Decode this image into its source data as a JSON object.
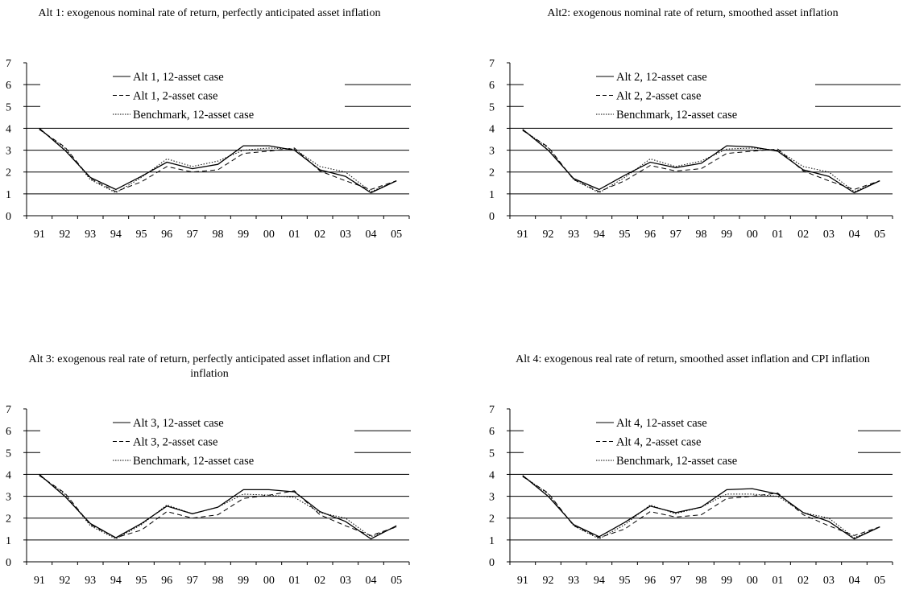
{
  "charts": [
    {
      "title": "Alt 1: exogenous nominal rate of return, perfectly anticipated asset inflation",
      "grid_x": [
        428,
        510
      ]
    },
    {
      "title": "Alt2: exogenous nominal rate of return, smoothed asset inflation",
      "grid_x": [
        412,
        518
      ]
    },
    {
      "title": "Alt 3: exogenous real rate of return, perfectly anticipated asset inflation and CPI inflation",
      "grid_x": [
        440,
        510
      ]
    },
    {
      "title": "Alt 4: exogenous real rate of return, smoothed asset inflation and CPI inflation",
      "grid_x": [
        465,
        518
      ]
    }
  ],
  "chart_data": [
    {
      "type": "line",
      "title": "Alt 1: exogenous nominal rate of return, perfectly anticipated asset inflation",
      "categories": [
        "91",
        "92",
        "93",
        "94",
        "95",
        "96",
        "97",
        "98",
        "99",
        "00",
        "01",
        "02",
        "03",
        "04",
        "05"
      ],
      "ylim": [
        0,
        7
      ],
      "yticks": [
        "0",
        "1",
        "2",
        "3",
        "4",
        "5",
        "6",
        "7"
      ],
      "grid": "horizontal at 4 and above, partial",
      "legend": "top-center",
      "series": [
        {
          "name": "Alt 1, 12-asset case",
          "style": "solid",
          "values": [
            4.0,
            3.0,
            1.75,
            1.2,
            1.8,
            2.45,
            2.15,
            2.35,
            3.2,
            3.2,
            3.0,
            2.1,
            1.8,
            1.05,
            1.6
          ]
        },
        {
          "name": "Alt 1, 2-asset case",
          "style": "dashed",
          "values": [
            3.95,
            3.15,
            1.7,
            1.1,
            1.55,
            2.25,
            2.0,
            2.1,
            2.85,
            2.95,
            3.1,
            2.05,
            1.6,
            1.2,
            1.6
          ]
        },
        {
          "name": "Benchmark, 12-asset case",
          "style": "dotted",
          "values": [
            3.95,
            3.1,
            1.65,
            1.05,
            1.75,
            2.6,
            2.25,
            2.5,
            3.0,
            3.1,
            3.05,
            2.25,
            2.0,
            1.1,
            1.6
          ]
        }
      ]
    },
    {
      "type": "line",
      "title": "Alt2: exogenous nominal rate of return, smoothed asset inflation",
      "categories": [
        "91",
        "92",
        "93",
        "94",
        "95",
        "96",
        "97",
        "98",
        "99",
        "00",
        "01",
        "02",
        "03",
        "04",
        "05"
      ],
      "ylim": [
        0,
        7
      ],
      "yticks": [
        "0",
        "1",
        "2",
        "3",
        "4",
        "5",
        "6",
        "7"
      ],
      "grid": "horizontal at 4 and above, partial",
      "legend": "top-center",
      "series": [
        {
          "name": "Alt 2, 12-asset case",
          "style": "solid",
          "values": [
            3.95,
            3.0,
            1.7,
            1.2,
            1.85,
            2.45,
            2.2,
            2.4,
            3.2,
            3.15,
            2.95,
            2.1,
            1.8,
            1.05,
            1.6
          ]
        },
        {
          "name": "Alt 2, 2-asset case",
          "style": "dashed",
          "values": [
            3.9,
            3.15,
            1.65,
            1.1,
            1.6,
            2.3,
            2.05,
            2.15,
            2.85,
            2.95,
            3.05,
            2.05,
            1.6,
            1.2,
            1.6
          ]
        },
        {
          "name": "Benchmark, 12-asset case",
          "style": "dotted",
          "values": [
            3.95,
            3.1,
            1.65,
            1.05,
            1.75,
            2.6,
            2.25,
            2.5,
            3.05,
            3.1,
            3.0,
            2.25,
            2.0,
            1.1,
            1.6
          ]
        }
      ]
    },
    {
      "type": "line",
      "title": "Alt 3: exogenous real rate of return, perfectly anticipated asset inflation and CPI inflation",
      "categories": [
        "91",
        "92",
        "93",
        "94",
        "95",
        "96",
        "97",
        "98",
        "99",
        "00",
        "01",
        "02",
        "03",
        "04",
        "05"
      ],
      "ylim": [
        0,
        7
      ],
      "yticks": [
        "0",
        "1",
        "2",
        "3",
        "4",
        "5",
        "6",
        "7"
      ],
      "grid": "horizontal at 4 and above, partial",
      "legend": "top-center",
      "series": [
        {
          "name": "Alt 3, 12-asset case",
          "style": "solid",
          "values": [
            4.0,
            3.0,
            1.75,
            1.1,
            1.75,
            2.55,
            2.2,
            2.5,
            3.3,
            3.3,
            3.2,
            2.3,
            1.85,
            1.05,
            1.65
          ]
        },
        {
          "name": "Alt 3, 2-asset case",
          "style": "dashed",
          "values": [
            3.95,
            3.15,
            1.7,
            1.1,
            1.45,
            2.3,
            2.0,
            2.15,
            2.9,
            3.05,
            3.25,
            2.15,
            1.65,
            1.2,
            1.6
          ]
        },
        {
          "name": "Benchmark, 12-asset case",
          "style": "dotted",
          "values": [
            3.95,
            3.1,
            1.65,
            1.05,
            1.7,
            2.6,
            2.2,
            2.5,
            3.1,
            3.05,
            2.95,
            2.25,
            2.0,
            1.15,
            1.6
          ]
        }
      ]
    },
    {
      "type": "line",
      "title": "Alt 4: exogenous real rate of return, smoothed asset inflation and CPI inflation",
      "categories": [
        "91",
        "92",
        "93",
        "94",
        "95",
        "96",
        "97",
        "98",
        "99",
        "00",
        "01",
        "02",
        "03",
        "04",
        "05"
      ],
      "ylim": [
        0,
        7
      ],
      "yticks": [
        "0",
        "1",
        "2",
        "3",
        "4",
        "5",
        "6",
        "7"
      ],
      "grid": "horizontal at 4 and above, partial",
      "legend": "top-center",
      "series": [
        {
          "name": "Alt 4, 12-asset case",
          "style": "solid",
          "values": [
            3.95,
            3.0,
            1.7,
            1.15,
            1.8,
            2.55,
            2.25,
            2.5,
            3.3,
            3.35,
            3.1,
            2.25,
            1.85,
            1.05,
            1.6
          ]
        },
        {
          "name": "Alt 4, 2-asset case",
          "style": "dashed",
          "values": [
            3.9,
            3.15,
            1.65,
            1.1,
            1.5,
            2.3,
            2.05,
            2.15,
            2.9,
            3.0,
            3.15,
            2.15,
            1.65,
            1.2,
            1.6
          ]
        },
        {
          "name": "Benchmark, 12-asset case",
          "style": "dotted",
          "values": [
            3.95,
            3.1,
            1.65,
            1.05,
            1.7,
            2.6,
            2.2,
            2.5,
            3.1,
            3.1,
            3.0,
            2.25,
            2.0,
            1.1,
            1.6
          ]
        }
      ]
    }
  ]
}
